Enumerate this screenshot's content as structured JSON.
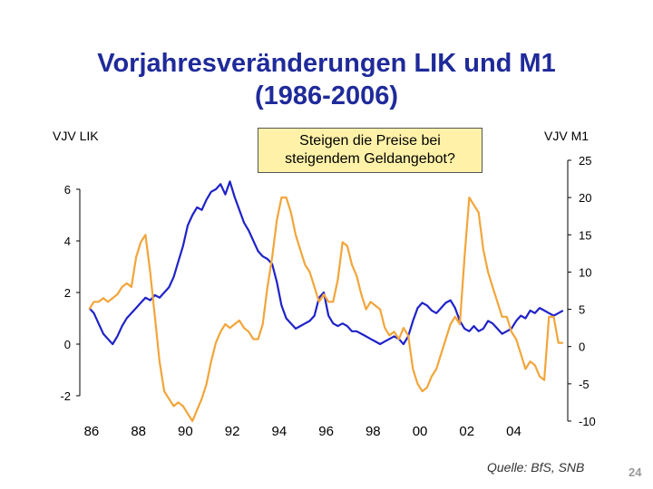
{
  "title_line1": "Vorjahresveränderungen LIK und M1",
  "title_line2": "(1986-2006)",
  "left_axis_title": "VJV LIK",
  "right_axis_title": "VJV M1",
  "callout": {
    "line1": "Steigen die Preise bei",
    "line2": "steigendem Geldangebot?",
    "fill": "#fff2a8"
  },
  "source": "Quelle: BfS, SNB",
  "page_number": "24",
  "colors": {
    "title": "#1f2a9a",
    "lik": "#1f22c8",
    "m1": "#f2a53a"
  },
  "chart_data": {
    "type": "line",
    "x_tick_labels": [
      "86",
      "88",
      "90",
      "92",
      "94",
      "96",
      "98",
      "00",
      "02",
      "04"
    ],
    "x_ticks": [
      1986,
      1988,
      1990,
      1992,
      1994,
      1996,
      1998,
      2000,
      2002,
      2004
    ],
    "xlim": [
      1985.5,
      2006.3
    ],
    "y_left": {
      "ticks": [
        -2,
        0,
        2,
        4,
        6
      ],
      "tick_labels": [
        "-2",
        "0",
        "2",
        "4",
        "6"
      ],
      "lim": [
        -2,
        6
      ]
    },
    "y_right": {
      "ticks": [
        -10,
        -5,
        0,
        5,
        10,
        15,
        20,
        25
      ],
      "tick_labels": [
        "-10",
        "-5",
        "0",
        "5",
        "10",
        "15",
        "20",
        "25"
      ],
      "lim": [
        -10,
        25
      ]
    },
    "grid": false,
    "legend": "none",
    "series": [
      {
        "axis": "left",
        "x": [
          1985.9,
          1986.1,
          1986.3,
          1986.5,
          1986.7,
          1986.9,
          1987.1,
          1987.3,
          1987.5,
          1987.7,
          1987.9,
          1988.1,
          1988.3,
          1988.5,
          1988.7,
          1988.9,
          1989.1,
          1989.3,
          1989.5,
          1989.7,
          1989.9,
          1990.1,
          1990.3,
          1990.5,
          1990.7,
          1990.9,
          1991.1,
          1991.3,
          1991.5,
          1991.7,
          1991.9,
          1992.1,
          1992.3,
          1992.5,
          1992.7,
          1992.9,
          1993.1,
          1993.3,
          1993.5,
          1993.7,
          1993.9,
          1994.1,
          1994.3,
          1994.5,
          1994.7,
          1994.9,
          1995.1,
          1995.3,
          1995.5,
          1995.7,
          1995.9,
          1996.1,
          1996.3,
          1996.5,
          1996.7,
          1996.9,
          1997.1,
          1997.3,
          1997.5,
          1997.7,
          1997.9,
          1998.1,
          1998.3,
          1998.5,
          1998.7,
          1998.9,
          1999.1,
          1999.3,
          1999.5,
          1999.7,
          1999.9,
          2000.1,
          2000.3,
          2000.5,
          2000.7,
          2000.9,
          2001.1,
          2001.3,
          2001.5,
          2001.7,
          2001.9,
          2002.1,
          2002.3,
          2002.5,
          2002.7,
          2002.9,
          2003.1,
          2003.3,
          2003.5,
          2003.7,
          2003.9,
          2004.1,
          2004.3,
          2004.5,
          2004.7,
          2004.9,
          2005.1,
          2005.3,
          2005.5,
          2005.7,
          2005.9,
          2006.1
        ],
        "values": [
          1.4,
          1.2,
          0.8,
          0.4,
          0.2,
          0.0,
          0.3,
          0.7,
          1.0,
          1.2,
          1.4,
          1.6,
          1.8,
          1.7,
          1.9,
          1.8,
          2.0,
          2.2,
          2.6,
          3.2,
          3.8,
          4.6,
          5.0,
          5.3,
          5.2,
          5.6,
          5.9,
          6.0,
          6.2,
          5.8,
          6.3,
          5.7,
          5.2,
          4.7,
          4.4,
          4.0,
          3.6,
          3.4,
          3.3,
          3.1,
          2.4,
          1.5,
          1.0,
          0.8,
          0.6,
          0.7,
          0.8,
          0.9,
          1.1,
          1.8,
          2.0,
          1.1,
          0.8,
          0.7,
          0.8,
          0.7,
          0.5,
          0.5,
          0.4,
          0.3,
          0.2,
          0.1,
          0.0,
          0.1,
          0.2,
          0.3,
          0.2,
          0.0,
          0.3,
          0.9,
          1.4,
          1.6,
          1.5,
          1.3,
          1.2,
          1.4,
          1.6,
          1.7,
          1.4,
          0.9,
          0.6,
          0.5,
          0.7,
          0.5,
          0.6,
          0.9,
          0.8,
          0.6,
          0.4,
          0.5,
          0.6,
          0.9,
          1.1,
          1.0,
          1.3,
          1.2,
          1.4,
          1.3,
          1.2,
          1.1,
          1.2,
          1.3
        ]
      },
      {
        "axis": "right",
        "x": [
          1985.9,
          1986.1,
          1986.3,
          1986.5,
          1986.7,
          1986.9,
          1987.1,
          1987.3,
          1987.5,
          1987.7,
          1987.9,
          1988.1,
          1988.3,
          1988.5,
          1988.7,
          1988.9,
          1989.1,
          1989.3,
          1989.5,
          1989.7,
          1989.9,
          1990.1,
          1990.3,
          1990.5,
          1990.7,
          1990.9,
          1991.1,
          1991.3,
          1991.5,
          1991.7,
          1991.9,
          1992.1,
          1992.3,
          1992.5,
          1992.7,
          1992.9,
          1993.1,
          1993.3,
          1993.5,
          1993.7,
          1993.9,
          1994.1,
          1994.3,
          1994.5,
          1994.7,
          1994.9,
          1995.1,
          1995.3,
          1995.5,
          1995.7,
          1995.9,
          1996.1,
          1996.3,
          1996.5,
          1996.7,
          1996.9,
          1997.1,
          1997.3,
          1997.5,
          1997.7,
          1997.9,
          1998.1,
          1998.3,
          1998.5,
          1998.7,
          1998.9,
          1999.1,
          1999.3,
          1999.5,
          1999.7,
          1999.9,
          2000.1,
          2000.3,
          2000.5,
          2000.7,
          2000.9,
          2001.1,
          2001.3,
          2001.5,
          2001.7,
          2001.9,
          2002.1,
          2002.3,
          2002.5,
          2002.7,
          2002.9,
          2003.1,
          2003.3,
          2003.5,
          2003.7,
          2003.9,
          2004.1,
          2004.3,
          2004.5,
          2004.7,
          2004.9,
          2005.1,
          2005.3,
          2005.5,
          2005.7,
          2005.9,
          2006.1
        ],
        "values": [
          5.0,
          6.0,
          6.0,
          6.5,
          6.0,
          6.5,
          7.0,
          8.0,
          8.5,
          8.0,
          12.0,
          14.0,
          15.0,
          10.0,
          4.0,
          -2.0,
          -6.0,
          -7.0,
          -8.0,
          -7.5,
          -8.0,
          -9.0,
          -10.0,
          -8.5,
          -7.0,
          -5.0,
          -2.0,
          0.5,
          2.0,
          3.0,
          2.5,
          3.0,
          3.5,
          2.5,
          2.0,
          1.0,
          1.0,
          3.0,
          8.0,
          12.0,
          17.0,
          20.0,
          20.0,
          18.0,
          15.0,
          13.0,
          11.0,
          10.0,
          8.0,
          6.0,
          7.0,
          6.0,
          6.0,
          9.0,
          14.0,
          13.5,
          11.0,
          9.5,
          7.0,
          5.0,
          6.0,
          5.5,
          5.0,
          2.5,
          1.5,
          2.0,
          1.0,
          2.5,
          1.5,
          -3.0,
          -5.0,
          -6.0,
          -5.5,
          -4.0,
          -3.0,
          -1.0,
          1.0,
          3.0,
          4.0,
          3.0,
          12.0,
          20.0,
          19.0,
          18.0,
          13.0,
          10.0,
          8.0,
          6.0,
          4.0,
          4.0,
          2.0,
          1.0,
          -1.0,
          -3.0,
          -2.0,
          -2.5,
          -4.0,
          -4.5,
          4.0,
          4.0,
          0.5,
          0.5
        ]
      }
    ]
  }
}
